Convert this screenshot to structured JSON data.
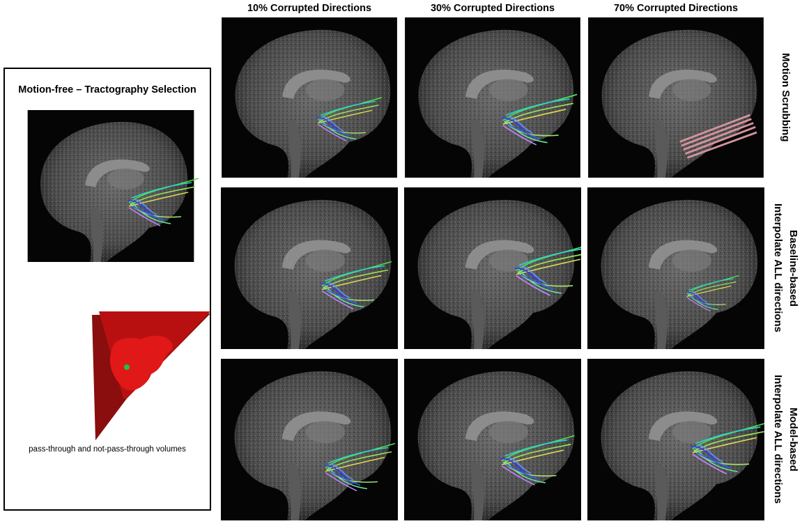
{
  "left_panel": {
    "title": "Motion-free – Tractography Selection",
    "caption": "pass-through and not-pass-through volumes"
  },
  "columns": [
    "10% Corrupted Directions",
    "30% Corrupted Directions",
    "70% Corrupted Directions"
  ],
  "rows": [
    [
      "Motion Scrubbing"
    ],
    [
      "Baseline-based",
      "Interpolate ALL directions"
    ],
    [
      "Model-based",
      "Interpolate ALL directions"
    ]
  ]
}
